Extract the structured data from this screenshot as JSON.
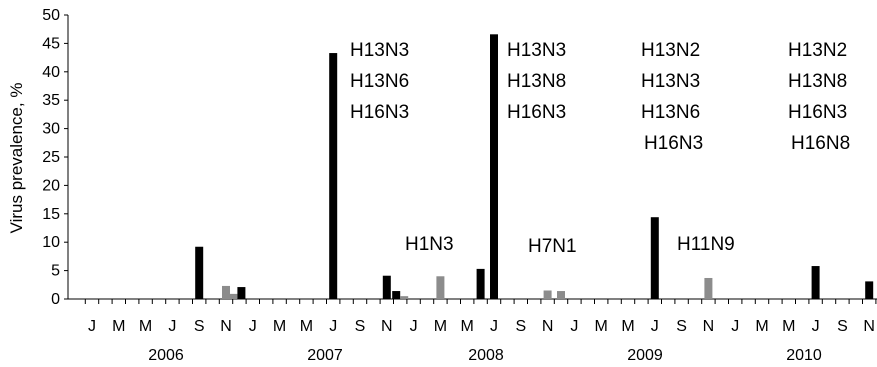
{
  "chart_data": {
    "type": "bar",
    "ylabel": "Virus prevalence, %",
    "ylim": [
      0,
      50
    ],
    "yticks": [
      0,
      5,
      10,
      15,
      20,
      25,
      30,
      35,
      40,
      45,
      50
    ],
    "grid": false,
    "x_tick_labels": [
      "J",
      "M",
      "M",
      "J",
      "S",
      "N",
      "J",
      "M",
      "M",
      "J",
      "S",
      "N",
      "J",
      "M",
      "M",
      "J",
      "S",
      "N",
      "J",
      "M",
      "M",
      "J",
      "S",
      "N",
      "J",
      "M",
      "M",
      "J",
      "S",
      "N"
    ],
    "year_labels": [
      "2006",
      "2007",
      "2008",
      "2009",
      "2010"
    ],
    "colors": {
      "black": "#000000",
      "gray": "#8c8c8c"
    },
    "bars": [
      {
        "month": 9,
        "value": 9.2,
        "color": "black"
      },
      {
        "month": 11,
        "value": 2.3,
        "color": "gray"
      },
      {
        "month": 12,
        "value": 0.9,
        "color": "gray"
      },
      {
        "month": 12,
        "value": 2.1,
        "color": "black"
      },
      {
        "month": 19,
        "value": 43.3,
        "color": "black"
      },
      {
        "month": 23,
        "value": 4.1,
        "color": "black"
      },
      {
        "month": 24,
        "value": 1.4,
        "color": "black"
      },
      {
        "month": 24,
        "value": 0.5,
        "color": "gray"
      },
      {
        "month": 27,
        "value": 4.0,
        "color": "gray"
      },
      {
        "month": 30,
        "value": 5.3,
        "color": "black"
      },
      {
        "month": 31,
        "value": 46.6,
        "color": "black"
      },
      {
        "month": 35,
        "value": 1.5,
        "color": "gray"
      },
      {
        "month": 36,
        "value": 1.4,
        "color": "gray"
      },
      {
        "month": 43,
        "value": 14.4,
        "color": "black"
      },
      {
        "month": 47,
        "value": 3.7,
        "color": "gray"
      },
      {
        "month": 55,
        "value": 5.8,
        "color": "black"
      },
      {
        "month": 59,
        "value": 3.1,
        "color": "black"
      }
    ],
    "annotations": [
      {
        "lines": [
          "H13N3",
          "H13N6",
          "H16N3"
        ]
      },
      {
        "lines": [
          "H13N3",
          "H13N8",
          "H16N3"
        ]
      },
      {
        "lines": [
          "H13N2",
          "H13N3",
          "H13N6",
          "H16N3"
        ]
      },
      {
        "lines": [
          "H13N2",
          "H13N8",
          "H16N3",
          "H16N8"
        ]
      },
      {
        "lines": [
          "H1N3"
        ]
      },
      {
        "lines": [
          "H7N1"
        ]
      },
      {
        "lines": [
          "H11N9"
        ]
      }
    ]
  }
}
